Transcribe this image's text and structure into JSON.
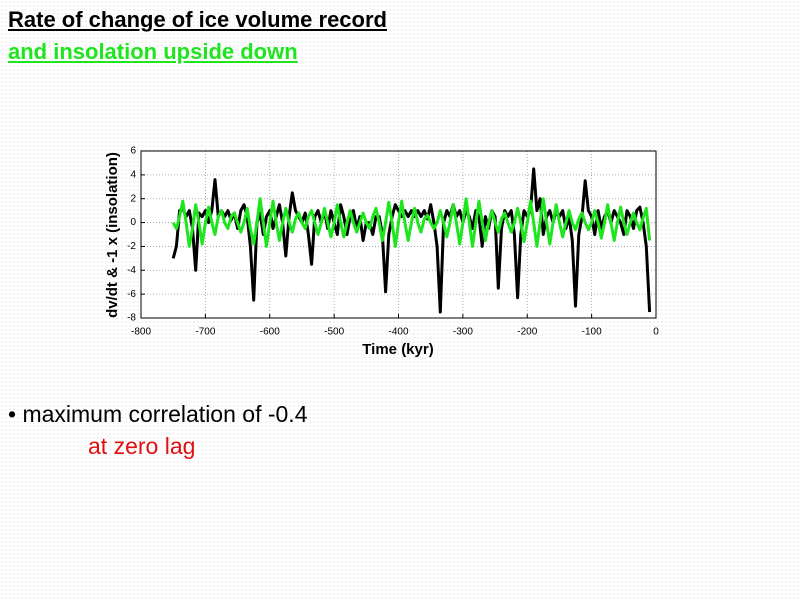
{
  "slide": {
    "title_lines": [
      "Rate of change of ice volume record",
      "and insolation upside down"
    ],
    "bullets": [
      "• maximum correlation of -0.4",
      "at zero lag"
    ]
  },
  "chart_data": {
    "type": "line",
    "xlabel": "Time (kyr)",
    "ylabel": "dv/dt & -1  x (insolation)",
    "xlim": [
      -800,
      0
    ],
    "xticks": [
      -800,
      -700,
      -600,
      -500,
      -400,
      -300,
      -200,
      -100,
      0
    ],
    "ylim": [
      -8,
      6
    ],
    "yticks": [
      -8,
      -6,
      -4,
      -2,
      0,
      2,
      4,
      6
    ],
    "grid": true,
    "x": [
      -750,
      -745,
      -740,
      -735,
      -730,
      -725,
      -720,
      -715,
      -710,
      -705,
      -700,
      -695,
      -690,
      -685,
      -680,
      -675,
      -670,
      -665,
      -660,
      -655,
      -650,
      -645,
      -640,
      -635,
      -630,
      -625,
      -620,
      -615,
      -610,
      -605,
      -600,
      -595,
      -590,
      -585,
      -580,
      -575,
      -570,
      -565,
      -560,
      -555,
      -550,
      -545,
      -540,
      -535,
      -530,
      -525,
      -520,
      -515,
      -510,
      -505,
      -500,
      -495,
      -490,
      -485,
      -480,
      -475,
      -470,
      -465,
      -460,
      -455,
      -450,
      -445,
      -440,
      -435,
      -430,
      -425,
      -420,
      -415,
      -410,
      -405,
      -400,
      -395,
      -390,
      -385,
      -380,
      -375,
      -370,
      -365,
      -360,
      -355,
      -350,
      -345,
      -340,
      -335,
      -330,
      -325,
      -320,
      -315,
      -310,
      -305,
      -300,
      -295,
      -290,
      -285,
      -280,
      -275,
      -270,
      -265,
      -260,
      -255,
      -250,
      -245,
      -240,
      -235,
      -230,
      -225,
      -220,
      -215,
      -210,
      -205,
      -200,
      -195,
      -190,
      -185,
      -180,
      -175,
      -170,
      -165,
      -160,
      -155,
      -150,
      -145,
      -140,
      -135,
      -130,
      -125,
      -120,
      -115,
      -110,
      -105,
      -100,
      -95,
      -90,
      -85,
      -80,
      -75,
      -70,
      -65,
      -60,
      -55,
      -50,
      -45,
      -40,
      -35,
      -30,
      -25,
      -20,
      -15,
      -10
    ],
    "series": [
      {
        "color": "#000000",
        "width": 3,
        "values": [
          -3,
          -2,
          1,
          1.2,
          0.5,
          1,
          -0.5,
          -4,
          0.8,
          0.5,
          1,
          0,
          1,
          3.6,
          0.5,
          1,
          0.5,
          1,
          0.2,
          0.8,
          -0.5,
          1,
          1.5,
          0.5,
          -2,
          -6.5,
          0,
          0.8,
          -1,
          0.5,
          1,
          -0.5,
          0.5,
          1.5,
          0,
          -2.8,
          0.5,
          2.5,
          1,
          0.5,
          0,
          0.8,
          -1,
          -3.5,
          0.5,
          1,
          0,
          1,
          -0.5,
          1,
          0,
          -1,
          1.5,
          0.5,
          -1,
          0.5,
          1,
          -0.5,
          0.5,
          -1.5,
          0,
          0,
          -1,
          0.5,
          0.5,
          -1,
          -5.8,
          -1,
          0.5,
          1.5,
          1,
          0.5,
          1,
          0.5,
          1,
          0.5,
          1,
          0.5,
          1,
          0.3,
          1.5,
          0,
          -2,
          -7.5,
          0,
          1,
          0.5,
          1.5,
          0.5,
          1,
          0,
          1,
          0.5,
          -0.5,
          1,
          0.5,
          -2,
          0.5,
          -0.5,
          1,
          0.5,
          -5.5,
          -0.5,
          1,
          0.5,
          1,
          -1,
          -6.3,
          -1,
          1,
          0.5,
          1,
          4.5,
          1,
          2,
          -1,
          0.5,
          1,
          0,
          1,
          0.5,
          1,
          -0.5,
          0.5,
          -1.5,
          -7,
          -1,
          0.5,
          3.5,
          1,
          0.5,
          -1,
          1,
          -0.5,
          0.5,
          1,
          0,
          1,
          0.5,
          0,
          -1,
          1,
          0.5,
          -0.5,
          1,
          1.3,
          0,
          -2,
          -7.5
        ]
      },
      {
        "color": "#1ee61e",
        "width": 3,
        "values": [
          0,
          -0.5,
          0.5,
          1.8,
          0,
          -2,
          -0.5,
          1.5,
          0,
          -1.8,
          0,
          1.3,
          0,
          -1,
          0.5,
          1,
          0,
          -0.5,
          0.5,
          0.8,
          0,
          -0.8,
          0,
          1.2,
          -0.5,
          -1.8,
          0,
          2,
          0,
          -2,
          0,
          1.8,
          0,
          -1.5,
          0,
          1.2,
          0,
          -0.8,
          0.3,
          0.8,
          0,
          -0.5,
          0.5,
          1,
          0,
          -1,
          0,
          1.2,
          0,
          -1.2,
          0,
          1.5,
          0,
          -1.2,
          0,
          1,
          0,
          -0.8,
          0,
          0.8,
          0,
          -0.5,
          0.5,
          1.2,
          0,
          -1.5,
          0,
          1.7,
          0,
          -2,
          0,
          1.8,
          0,
          -1.5,
          0,
          1.2,
          0,
          -0.8,
          0.3,
          0.6,
          0,
          -0.5,
          0,
          1,
          0,
          -1.2,
          0,
          1.5,
          0,
          -1.8,
          0,
          2,
          0,
          -2,
          0,
          1.8,
          0,
          -1.5,
          0,
          1,
          0,
          -0.8,
          0.3,
          0.8,
          0,
          -0.8,
          0,
          1.2,
          0,
          -1.6,
          0,
          1.8,
          0,
          -2,
          0,
          2,
          0,
          -1.8,
          0,
          1.5,
          0,
          -1.2,
          0,
          1,
          0,
          -0.6,
          0.3,
          0.8,
          0,
          -0.6,
          0,
          1,
          0,
          -1.3,
          0,
          1.5,
          0,
          -1.5,
          0,
          1.3,
          0,
          -1,
          0,
          0.8,
          0,
          -0.6,
          0.4,
          1.2,
          -1.5
        ]
      }
    ]
  }
}
